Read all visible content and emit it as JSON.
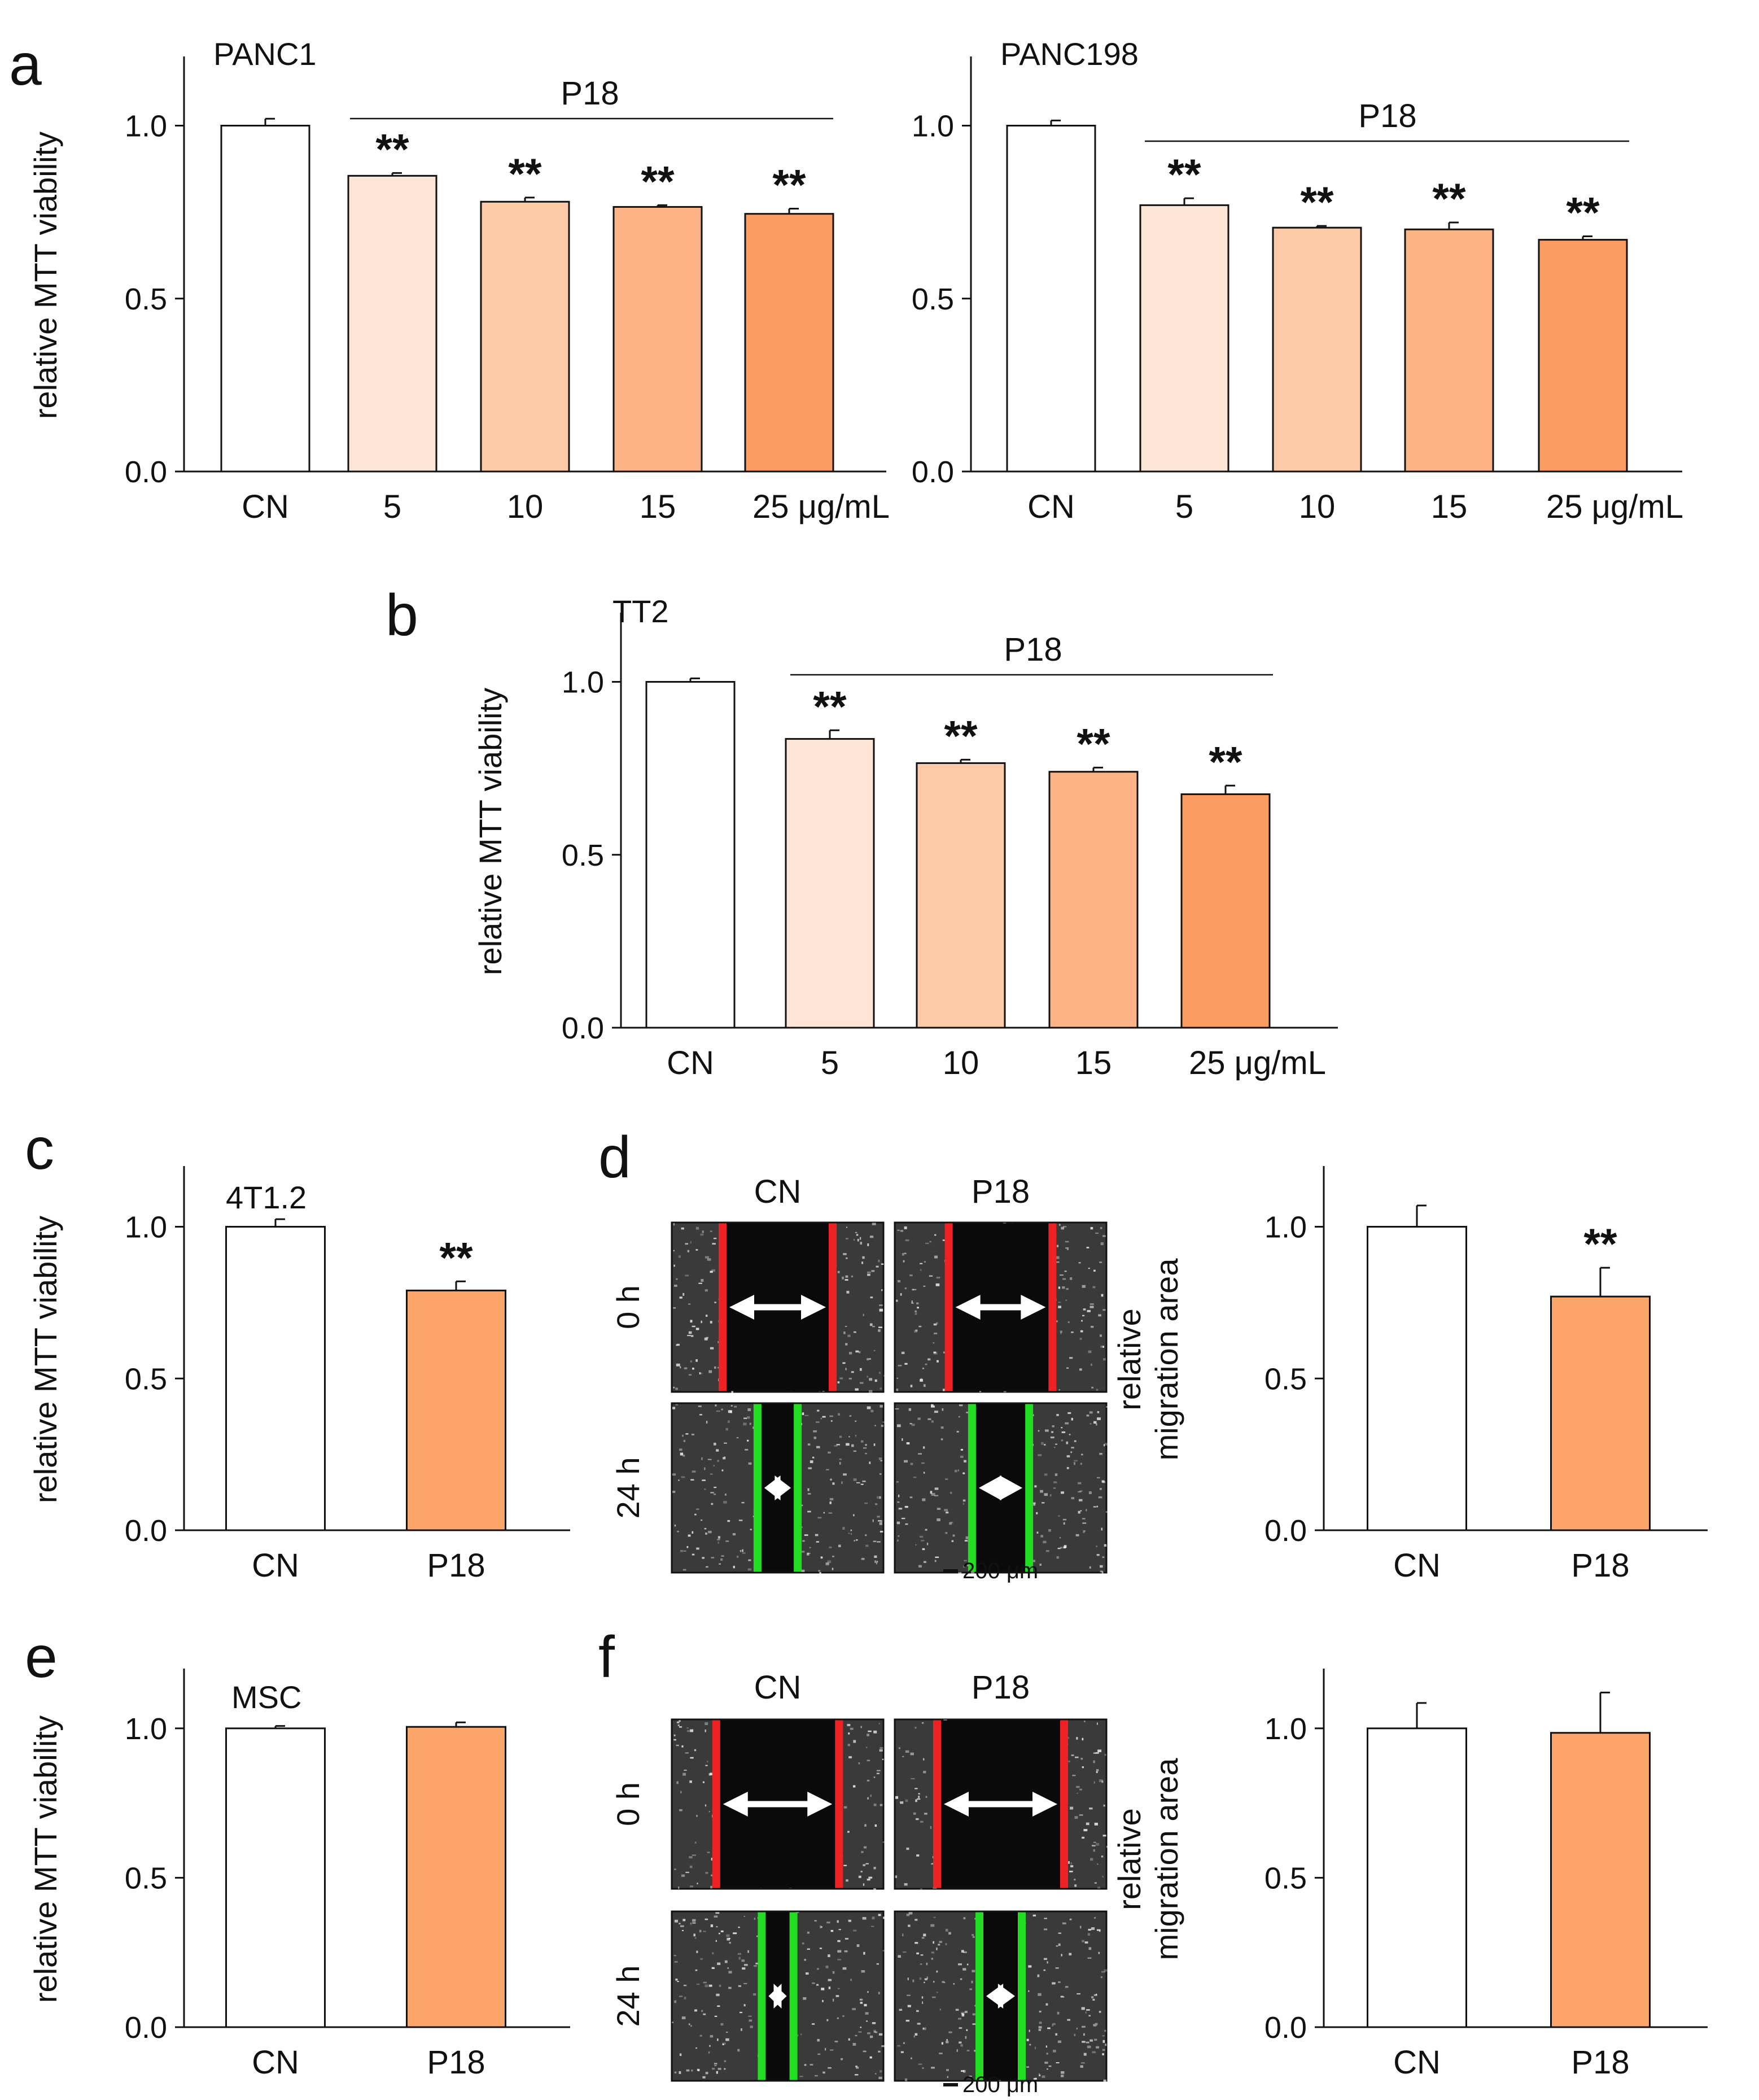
{
  "chart_data": [
    {
      "panel": "a",
      "type": "bar",
      "cell_line": "PANC1",
      "categories": [
        "CN",
        "5",
        "10",
        "15",
        "25 μg/mL"
      ],
      "values": [
        1.0,
        0.855,
        0.78,
        0.765,
        0.745
      ],
      "errors": [
        0.02,
        0.008,
        0.012,
        0.005,
        0.015
      ],
      "significance": [
        "",
        "**",
        "**",
        "**",
        "**"
      ],
      "group_label": "P18",
      "ylabel": "relative MTT viability",
      "yticks": [
        "0.0",
        "0.5",
        "1.0"
      ],
      "ylim": [
        0,
        1.2
      ],
      "colors": [
        "#ffffff",
        "#fde5d6",
        "#fdcaa8",
        "#fcb385",
        "#fb9d62"
      ]
    },
    {
      "panel": "",
      "type": "bar",
      "cell_line": "PANC198",
      "categories": [
        "CN",
        "5",
        "10",
        "15",
        "25 μg/mL"
      ],
      "values": [
        1.0,
        0.77,
        0.705,
        0.7,
        0.67
      ],
      "errors": [
        0.015,
        0.02,
        0.005,
        0.02,
        0.01
      ],
      "significance": [
        "",
        "**",
        "**",
        "**",
        "**"
      ],
      "group_label": "P18",
      "ylabel": "",
      "yticks": [
        "0.0",
        "0.5",
        "1.0"
      ],
      "ylim": [
        0,
        1.2
      ],
      "colors": [
        "#ffffff",
        "#fde5d6",
        "#fdcaa8",
        "#fcb385",
        "#fb9d62"
      ]
    },
    {
      "panel": "b",
      "type": "bar",
      "cell_line": "TT2",
      "categories": [
        "CN",
        "5",
        "10",
        "15",
        "25 μg/mL"
      ],
      "values": [
        1.0,
        0.835,
        0.765,
        0.74,
        0.675
      ],
      "errors": [
        0.01,
        0.025,
        0.01,
        0.012,
        0.025
      ],
      "significance": [
        "",
        "**",
        "**",
        "**",
        "**"
      ],
      "group_label": "P18",
      "ylabel": "relative MTT viability",
      "yticks": [
        "0.0",
        "0.5",
        "1.0"
      ],
      "ylim": [
        0,
        1.2
      ],
      "colors": [
        "#ffffff",
        "#fde5d6",
        "#fdcaa8",
        "#fcb385",
        "#fb9d62"
      ]
    },
    {
      "panel": "c",
      "type": "bar",
      "cell_line": "4T1.2",
      "categories": [
        "CN",
        "P18"
      ],
      "values": [
        1.0,
        0.79
      ],
      "errors": [
        0.025,
        0.03
      ],
      "significance": [
        "",
        "**"
      ],
      "ylabel": "relative MTT viability",
      "yticks": [
        "0.0",
        "0.5",
        "1.0"
      ],
      "ylim": [
        0,
        1.2
      ],
      "colors": [
        "#ffffff",
        "#fba56a"
      ]
    },
    {
      "panel": "",
      "type": "bar",
      "cell_line": "",
      "categories": [
        "CN",
        "P18"
      ],
      "values": [
        1.0,
        0.77
      ],
      "errors": [
        0.07,
        0.095
      ],
      "significance": [
        "",
        "**"
      ],
      "ylabel": "relative\nmigration area",
      "yticks": [
        "0.0",
        "0.5",
        "1.0"
      ],
      "ylim": [
        0,
        1.2
      ],
      "colors": [
        "#ffffff",
        "#fba56a"
      ]
    },
    {
      "panel": "e",
      "type": "bar",
      "cell_line": "MSC",
      "categories": [
        "CN",
        "P18"
      ],
      "values": [
        1.0,
        1.005
      ],
      "errors": [
        0.008,
        0.015
      ],
      "significance": [
        "",
        ""
      ],
      "ylabel": "relative MTT viability",
      "yticks": [
        "0.0",
        "0.5",
        "1.0"
      ],
      "ylim": [
        0,
        1.2
      ],
      "colors": [
        "#ffffff",
        "#fba56a"
      ]
    },
    {
      "panel": "",
      "type": "bar",
      "cell_line": "",
      "categories": [
        "CN",
        "P18"
      ],
      "values": [
        1.0,
        0.985
      ],
      "errors": [
        0.085,
        0.135
      ],
      "significance": [
        "",
        ""
      ],
      "ylabel": "relative\nmigration area",
      "yticks": [
        "0.0",
        "0.5",
        "1.0"
      ],
      "ylim": [
        0,
        1.2
      ],
      "colors": [
        "#ffffff",
        "#fba56a"
      ]
    }
  ],
  "wound_panels": [
    {
      "panel": "d",
      "columns": [
        "CN",
        "P18"
      ],
      "rows": [
        "0 h",
        "24 h"
      ],
      "scale_bar": "200 μm",
      "gap_fraction": [
        [
          0.52,
          0.49
        ],
        [
          0.19,
          0.27
        ]
      ],
      "line_colors": [
        "#ee2222",
        "#22dd22"
      ]
    },
    {
      "panel": "f",
      "columns": [
        "CN",
        "P18"
      ],
      "rows": [
        "0 h",
        "24 h"
      ],
      "scale_bar": "200 μm",
      "gap_fraction": [
        [
          0.58,
          0.6
        ],
        [
          0.15,
          0.2
        ]
      ],
      "line_colors": [
        "#ee2222",
        "#22dd22"
      ]
    }
  ]
}
